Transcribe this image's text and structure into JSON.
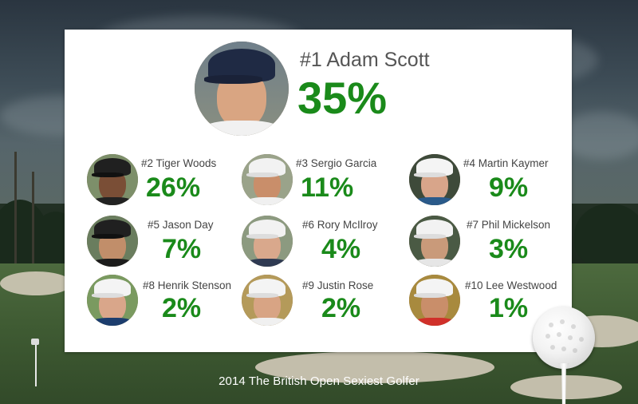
{
  "winner": {
    "rank_name": "#1 Adam Scott",
    "percent": "35%",
    "cap_color": "#1f2a44",
    "shirt_color": "#f1f1f1"
  },
  "golfers": [
    {
      "rank_name": "#2 Tiger Woods",
      "percent": "26%",
      "cap_color": "#202020",
      "shirt_color": "#222222"
    },
    {
      "rank_name": "#3 Sergio Garcia",
      "percent": "11%",
      "cap_color": "#f2f2f2",
      "shirt_color": "#f0f0f0"
    },
    {
      "rank_name": "#4 Martin Kaymer",
      "percent": "9%",
      "cap_color": "#f4f4f4",
      "shirt_color": "#2a5a8a"
    },
    {
      "rank_name": "#5 Jason Day",
      "percent": "7%",
      "cap_color": "#202020",
      "shirt_color": "#1c1c1c"
    },
    {
      "rank_name": "#6 Rory McIlroy",
      "percent": "4%",
      "cap_color": "#f2f2f2",
      "shirt_color": "#2f3a52"
    },
    {
      "rank_name": "#7 Phil Mickelson",
      "percent": "3%",
      "cap_color": "#f2f2f2",
      "shirt_color": "#e6e6e6"
    },
    {
      "rank_name": "#8 Henrik Stenson",
      "percent": "2%",
      "cap_color": "#f4f4f4",
      "shirt_color": "#1c3d6e"
    },
    {
      "rank_name": "#9 Justin Rose",
      "percent": "2%",
      "cap_color": "#f4f4f4",
      "shirt_color": "#f0f0f0"
    },
    {
      "rank_name": "#10 Lee Westwood",
      "percent": "1%",
      "cap_color": "#f4f4f4",
      "shirt_color": "#d0302a"
    }
  ],
  "footer": {
    "title": "2014 The British Open Sexiest Golfer"
  },
  "colors": {
    "accent": "#1a8a1a",
    "name_text": "#444444"
  }
}
